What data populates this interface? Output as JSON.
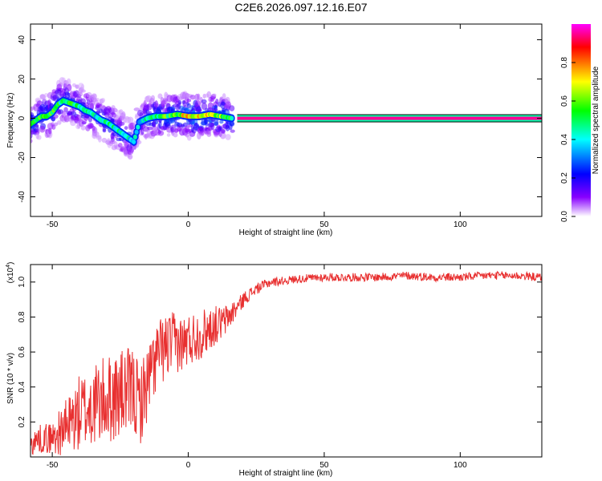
{
  "title": "C2E6.2026.097.12.16.E07",
  "colors": {
    "snr_line": "#e83030",
    "frame": "#000000",
    "colormap": [
      "#ff00ff",
      "#ff0000",
      "#ffff00",
      "#00ff00",
      "#00ffff",
      "#0000ff",
      "#ffffff"
    ]
  },
  "chart_data": [
    {
      "type": "heatmap",
      "title": "C2E6.2026.097.12.16.E07",
      "xlabel": "Height of straight line (km)",
      "ylabel": "Frequency (Hz)",
      "xlim": [
        -58,
        130
      ],
      "ylim": [
        -50,
        48
      ],
      "x_ticks": [
        -50,
        0,
        50,
        100
      ],
      "x_tick_labels": [
        "-50",
        "0",
        "50",
        "100"
      ],
      "y_ticks": [
        -40,
        -20,
        0,
        20,
        40
      ],
      "y_tick_labels": [
        "-40",
        "-20",
        "0",
        "20",
        "40"
      ],
      "colorbar": {
        "label": "Normalized spectral amplitude",
        "range": [
          0,
          1
        ],
        "ticks": [
          0.0,
          0.2,
          0.4,
          0.6,
          0.8
        ],
        "tick_labels": [
          "0.0",
          "0.2",
          "0.4",
          "0.6",
          "0.8"
        ]
      },
      "ridge": {
        "x": [
          -58,
          -56,
          -54,
          -52,
          -50,
          -48,
          -46,
          -44,
          -42,
          -40,
          -38,
          -36,
          -34,
          -32,
          -30,
          -28,
          -26,
          -24,
          -22,
          -20,
          -18,
          -15,
          -12,
          -8,
          -4,
          0,
          4,
          8,
          12,
          16
        ],
        "freq": [
          -3,
          -1,
          1,
          1,
          3,
          7,
          9,
          8,
          7,
          6,
          4,
          3,
          1,
          -1,
          -2,
          -4,
          -6,
          -8,
          -10,
          -12,
          -2,
          0,
          1,
          1,
          2,
          1,
          1,
          2,
          1,
          0
        ],
        "amp": [
          0.5,
          0.55,
          0.6,
          0.55,
          0.55,
          0.5,
          0.45,
          0.5,
          0.5,
          0.45,
          0.45,
          0.45,
          0.4,
          0.45,
          0.45,
          0.45,
          0.45,
          0.45,
          0.4,
          0.4,
          0.35,
          0.45,
          0.5,
          0.55,
          0.55,
          0.75,
          0.7,
          0.65,
          0.6,
          0.5
        ]
      },
      "line_band": {
        "x_start": 18,
        "x_end": 130,
        "freq": 0,
        "amp": 0.95
      }
    },
    {
      "type": "line",
      "xlabel": "Height of straight line (km)",
      "ylabel": "SNR (10 * v/v)",
      "y_scale_label": "(x10",
      "y_scale_exponent": "4",
      "y_scale_suffix": ")",
      "xlim": [
        -58,
        130
      ],
      "ylim": [
        0,
        1.1
      ],
      "x_ticks": [
        -50,
        0,
        50,
        100
      ],
      "x_tick_labels": [
        "-50",
        "0",
        "50",
        "100"
      ],
      "y_ticks": [
        0.2,
        0.4,
        0.6,
        0.8,
        1.0
      ],
      "y_tick_labels": [
        "0.2",
        "0.4",
        "0.6",
        "0.8",
        "1.0"
      ],
      "series": [
        {
          "name": "SNR",
          "x": [
            -58,
            -55,
            -50,
            -45,
            -40,
            -35,
            -30,
            -25,
            -20,
            -18,
            -15,
            -12,
            -10,
            -7,
            -5,
            -2,
            0,
            3,
            5,
            8,
            10,
            13,
            15,
            17,
            19,
            21,
            25,
            30,
            35,
            40,
            50,
            60,
            70,
            80,
            90,
            100,
            110,
            120,
            130
          ],
          "base": [
            0.05,
            0.08,
            0.08,
            0.12,
            0.18,
            0.22,
            0.25,
            0.28,
            0.3,
            0.22,
            0.35,
            0.5,
            0.55,
            0.58,
            0.6,
            0.6,
            0.62,
            0.65,
            0.66,
            0.7,
            0.72,
            0.74,
            0.78,
            0.82,
            0.86,
            0.9,
            0.95,
            0.99,
            1.0,
            1.01,
            1.02,
            1.02,
            1.02,
            1.03,
            1.02,
            1.02,
            1.03,
            1.03,
            1.02
          ],
          "spread": [
            0.08,
            0.1,
            0.12,
            0.2,
            0.28,
            0.3,
            0.32,
            0.32,
            0.32,
            0.3,
            0.28,
            0.26,
            0.24,
            0.24,
            0.22,
            0.2,
            0.2,
            0.18,
            0.18,
            0.16,
            0.14,
            0.12,
            0.1,
            0.08,
            0.06,
            0.05,
            0.04,
            0.035,
            0.03,
            0.03,
            0.03,
            0.03,
            0.03,
            0.03,
            0.03,
            0.03,
            0.03,
            0.03,
            0.03
          ]
        }
      ]
    }
  ]
}
